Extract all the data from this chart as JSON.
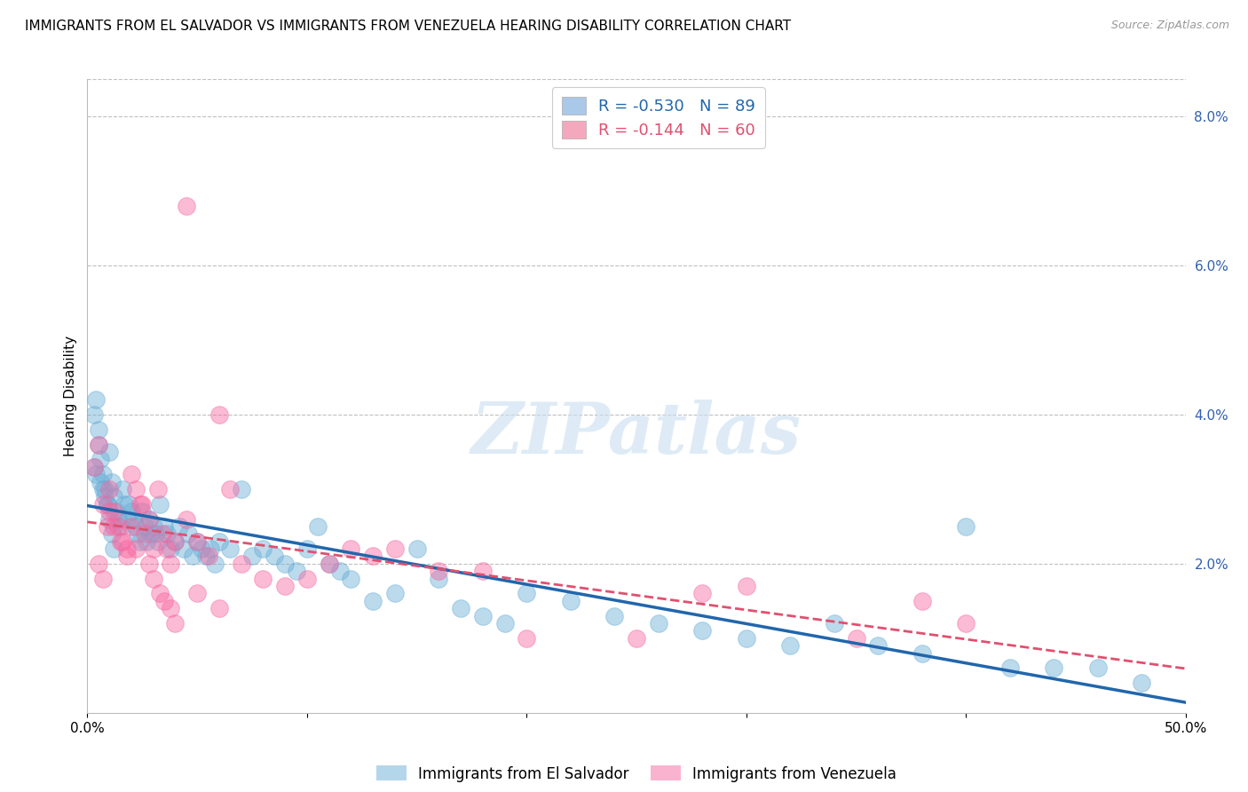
{
  "title": "IMMIGRANTS FROM EL SALVADOR VS IMMIGRANTS FROM VENEZUELA HEARING DISABILITY CORRELATION CHART",
  "source": "Source: ZipAtlas.com",
  "ylabel": "Hearing Disability",
  "watermark": "ZIPatlas",
  "legend_entry1": {
    "color": "#aac8e8",
    "R": "-0.530",
    "N": "89",
    "label": "Immigrants from El Salvador"
  },
  "legend_entry2": {
    "color": "#f4a8be",
    "R": "-0.144",
    "N": "60",
    "label": "Immigrants from Venezuela"
  },
  "scatter_color1": "#6aaed6",
  "scatter_color2": "#f768a1",
  "line_color1": "#2166ac",
  "line_color2": "#e05070",
  "background_color": "#ffffff",
  "grid_color": "#c0c0c0",
  "xlim": [
    0.0,
    0.5
  ],
  "ylim": [
    0.0,
    0.085
  ],
  "yticks": [
    0.02,
    0.04,
    0.06,
    0.08
  ],
  "ytick_labels": [
    "2.0%",
    "4.0%",
    "6.0%",
    "8.0%"
  ],
  "xticks": [
    0.0,
    0.1,
    0.2,
    0.3,
    0.4,
    0.5
  ],
  "xtick_labels": [
    "0.0%",
    "",
    "",
    "",
    "",
    "50.0%"
  ],
  "title_fontsize": 11,
  "source_fontsize": 9,
  "axis_fontsize": 11,
  "el_salvador_x": [
    0.003,
    0.004,
    0.005,
    0.006,
    0.007,
    0.008,
    0.009,
    0.01,
    0.011,
    0.012,
    0.013,
    0.014,
    0.015,
    0.016,
    0.017,
    0.018,
    0.019,
    0.02,
    0.021,
    0.022,
    0.023,
    0.024,
    0.025,
    0.026,
    0.027,
    0.028,
    0.029,
    0.03,
    0.031,
    0.032,
    0.033,
    0.035,
    0.036,
    0.038,
    0.04,
    0.042,
    0.044,
    0.046,
    0.048,
    0.05,
    0.052,
    0.054,
    0.056,
    0.058,
    0.06,
    0.065,
    0.07,
    0.075,
    0.08,
    0.085,
    0.09,
    0.095,
    0.1,
    0.105,
    0.11,
    0.115,
    0.12,
    0.13,
    0.14,
    0.15,
    0.16,
    0.17,
    0.18,
    0.19,
    0.2,
    0.22,
    0.24,
    0.26,
    0.28,
    0.3,
    0.32,
    0.34,
    0.36,
    0.38,
    0.4,
    0.42,
    0.44,
    0.46,
    0.48,
    0.003,
    0.004,
    0.005,
    0.006,
    0.007,
    0.008,
    0.009,
    0.01,
    0.011,
    0.012
  ],
  "el_salvador_y": [
    0.033,
    0.032,
    0.036,
    0.031,
    0.03,
    0.029,
    0.028,
    0.035,
    0.031,
    0.029,
    0.027,
    0.026,
    0.025,
    0.03,
    0.028,
    0.026,
    0.028,
    0.027,
    0.026,
    0.025,
    0.024,
    0.023,
    0.027,
    0.025,
    0.023,
    0.026,
    0.024,
    0.025,
    0.024,
    0.023,
    0.028,
    0.025,
    0.024,
    0.022,
    0.023,
    0.025,
    0.022,
    0.024,
    0.021,
    0.023,
    0.022,
    0.021,
    0.022,
    0.02,
    0.023,
    0.022,
    0.03,
    0.021,
    0.022,
    0.021,
    0.02,
    0.019,
    0.022,
    0.025,
    0.02,
    0.019,
    0.018,
    0.015,
    0.016,
    0.022,
    0.018,
    0.014,
    0.013,
    0.012,
    0.016,
    0.015,
    0.013,
    0.012,
    0.011,
    0.01,
    0.009,
    0.012,
    0.009,
    0.008,
    0.025,
    0.006,
    0.006,
    0.006,
    0.004,
    0.04,
    0.042,
    0.038,
    0.034,
    0.032,
    0.03,
    0.028,
    0.026,
    0.024,
    0.022
  ],
  "venezuela_x": [
    0.003,
    0.005,
    0.007,
    0.009,
    0.01,
    0.012,
    0.014,
    0.016,
    0.018,
    0.02,
    0.022,
    0.024,
    0.026,
    0.028,
    0.03,
    0.032,
    0.034,
    0.036,
    0.038,
    0.04,
    0.045,
    0.05,
    0.055,
    0.06,
    0.065,
    0.07,
    0.08,
    0.09,
    0.1,
    0.11,
    0.12,
    0.13,
    0.14,
    0.16,
    0.18,
    0.2,
    0.25,
    0.28,
    0.3,
    0.35,
    0.38,
    0.4,
    0.005,
    0.007,
    0.01,
    0.012,
    0.015,
    0.018,
    0.02,
    0.022,
    0.025,
    0.028,
    0.03,
    0.033,
    0.035,
    0.038,
    0.04,
    0.045,
    0.05,
    0.06
  ],
  "venezuela_y": [
    0.033,
    0.036,
    0.028,
    0.025,
    0.03,
    0.027,
    0.025,
    0.023,
    0.022,
    0.025,
    0.022,
    0.028,
    0.024,
    0.026,
    0.022,
    0.03,
    0.024,
    0.022,
    0.02,
    0.023,
    0.026,
    0.023,
    0.021,
    0.04,
    0.03,
    0.02,
    0.018,
    0.017,
    0.018,
    0.02,
    0.022,
    0.021,
    0.022,
    0.019,
    0.019,
    0.01,
    0.01,
    0.016,
    0.017,
    0.01,
    0.015,
    0.012,
    0.02,
    0.018,
    0.027,
    0.025,
    0.023,
    0.021,
    0.032,
    0.03,
    0.028,
    0.02,
    0.018,
    0.016,
    0.015,
    0.014,
    0.012,
    0.068,
    0.016,
    0.014
  ]
}
